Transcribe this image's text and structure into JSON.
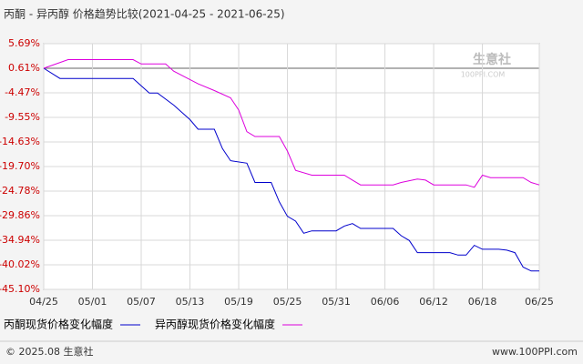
{
  "chart_data": {
    "type": "line",
    "title": "丙酮 - 异丙醇 价格趋势比较(2021-04-25 - 2021-06-25)",
    "watermark": "生意社",
    "watermark_sub": "100PPI.COM",
    "footer_left": "© 2025.08 生意社",
    "footer_right": "www.100PPI.com",
    "xlim": [
      "04/25",
      "06/25"
    ],
    "xticks": [
      "04/25",
      "05/01",
      "05/07",
      "05/13",
      "05/19",
      "05/25",
      "05/31",
      "06/06",
      "06/12",
      "06/18",
      "06/25"
    ],
    "ylim": [
      -45.1,
      5.69
    ],
    "yticks": [
      {
        "value": 5.69,
        "label": "5.69%"
      },
      {
        "value": 0.61,
        "label": "0.61%"
      },
      {
        "value": -4.47,
        "label": "-4.47%"
      },
      {
        "value": -9.55,
        "label": "-9.55%"
      },
      {
        "value": -14.63,
        "label": "-14.63%"
      },
      {
        "value": -19.7,
        "label": "-19.70%"
      },
      {
        "value": -24.78,
        "label": "-24.78%"
      },
      {
        "value": -29.86,
        "label": "-29.86%"
      },
      {
        "value": -34.94,
        "label": "-34.94%"
      },
      {
        "value": -40.02,
        "label": "-40.02%"
      },
      {
        "value": -45.1,
        "label": "-45.10%"
      }
    ],
    "grid": true,
    "series": [
      {
        "name": "丙酮现货价格变化幅度",
        "color": "#0000cc",
        "x": [
          "04/25",
          "04/27",
          "05/06",
          "05/07",
          "05/08",
          "05/09",
          "05/11",
          "05/13",
          "05/14",
          "05/16",
          "05/17",
          "05/18",
          "05/20",
          "05/21",
          "05/23",
          "05/24",
          "05/25",
          "05/26",
          "05/27",
          "05/28",
          "05/31",
          "06/01",
          "06/02",
          "06/03",
          "06/07",
          "06/08",
          "06/09",
          "06/10",
          "06/14",
          "06/15",
          "06/16",
          "06/17",
          "06/18",
          "06/20",
          "06/21",
          "06/22",
          "06/23",
          "06/24",
          "06/25"
        ],
        "values": [
          0.61,
          -1.5,
          -1.5,
          -3,
          -4.5,
          -4.5,
          -7,
          -10,
          -12,
          -12,
          -16,
          -18.5,
          -19,
          -23,
          -23,
          -27,
          -30,
          -31,
          -33.5,
          -33,
          -33,
          -32,
          -31.5,
          -32.5,
          -32.5,
          -34,
          -35,
          -37.5,
          -37.5,
          -38,
          -38,
          -36,
          -36.8,
          -36.8,
          -37,
          -37.5,
          -40.5,
          -41.3,
          -41.3
        ]
      },
      {
        "name": "异丙醇现货价格变化幅度",
        "color": "#dd00dd",
        "x": [
          "04/25",
          "04/26",
          "04/28",
          "05/06",
          "05/07",
          "05/10",
          "05/11",
          "05/14",
          "05/16",
          "05/18",
          "05/19",
          "05/20",
          "05/21",
          "05/24",
          "05/25",
          "05/26",
          "05/28",
          "06/01",
          "06/02",
          "06/03",
          "06/07",
          "06/08",
          "06/10",
          "06/11",
          "06/12",
          "06/16",
          "06/17",
          "06/18",
          "06/19",
          "06/23",
          "06/24",
          "06/25"
        ],
        "values": [
          0.61,
          1.2,
          2.4,
          2.4,
          1.5,
          1.5,
          0,
          -2.6,
          -4,
          -5.5,
          -8,
          -12.5,
          -13.5,
          -13.5,
          -16.5,
          -20.5,
          -21.5,
          -21.5,
          -22.5,
          -23.5,
          -23.5,
          -23,
          -22.3,
          -22.5,
          -23.5,
          -23.5,
          -24,
          -21.5,
          -22,
          -22,
          -23,
          -23.5
        ]
      }
    ]
  }
}
